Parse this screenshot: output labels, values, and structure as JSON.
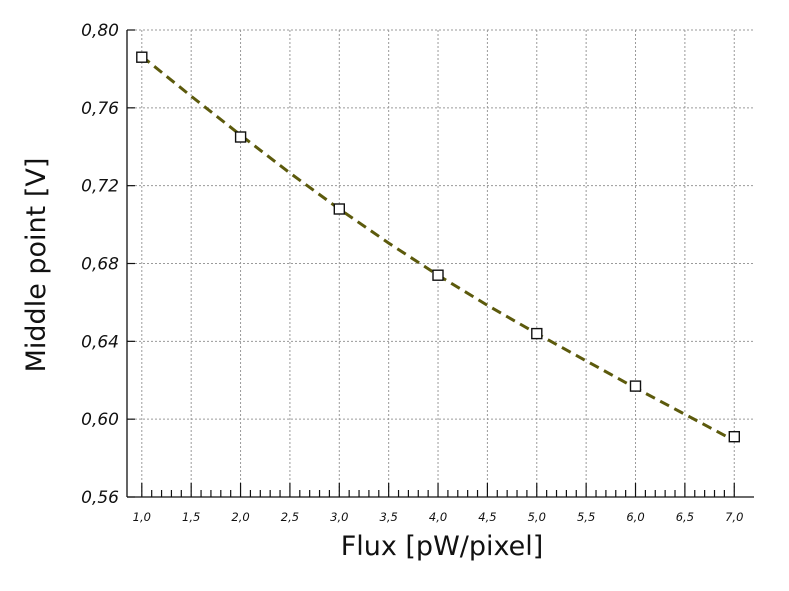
{
  "chart_data": {
    "type": "scatter",
    "title": "",
    "xlabel": "Flux [pW/pixel]",
    "ylabel": "Middle point [V]",
    "xlim": [
      0.85,
      7.2
    ],
    "ylim": [
      0.56,
      0.8
    ],
    "x_ticks": [
      1.0,
      1.5,
      2.0,
      2.5,
      3.0,
      3.5,
      4.0,
      4.5,
      5.0,
      5.5,
      6.0,
      6.5,
      7.0
    ],
    "x_tick_labels": [
      "1,0",
      "1,5",
      "2,0",
      "2,5",
      "3,0",
      "3,5",
      "4,0",
      "4,5",
      "5,0",
      "5,5",
      "6,0",
      "6,5",
      "7,0"
    ],
    "x_minor_step": 0.1,
    "y_ticks": [
      0.56,
      0.6,
      0.64,
      0.68,
      0.72,
      0.76,
      0.8
    ],
    "y_tick_labels": [
      "0,56",
      "0,60",
      "0,64",
      "0,68",
      "0,72",
      "0,76",
      "0,80"
    ],
    "grid": true,
    "series": [
      {
        "marker": "square-open",
        "x": [
          1.0,
          2.0,
          3.0,
          4.0,
          5.0,
          6.0,
          7.0
        ],
        "y": [
          0.786,
          0.745,
          0.708,
          0.674,
          0.644,
          0.617,
          0.591
        ]
      },
      {
        "kind": "fit",
        "style": "dashed",
        "color": "#5c5a0c",
        "x": [
          1.0,
          1.5,
          2.0,
          2.5,
          3.0,
          3.5,
          4.0,
          4.5,
          5.0,
          5.5,
          6.0,
          6.5,
          7.0
        ],
        "y": [
          0.7865,
          0.766,
          0.746,
          0.7265,
          0.708,
          0.6905,
          0.674,
          0.6585,
          0.644,
          0.63,
          0.616,
          0.6025,
          0.589
        ]
      }
    ],
    "colors": {
      "marker_stroke": "#111111",
      "fit_line": "#5c5a0c",
      "grid": "#9a9a9a"
    }
  }
}
